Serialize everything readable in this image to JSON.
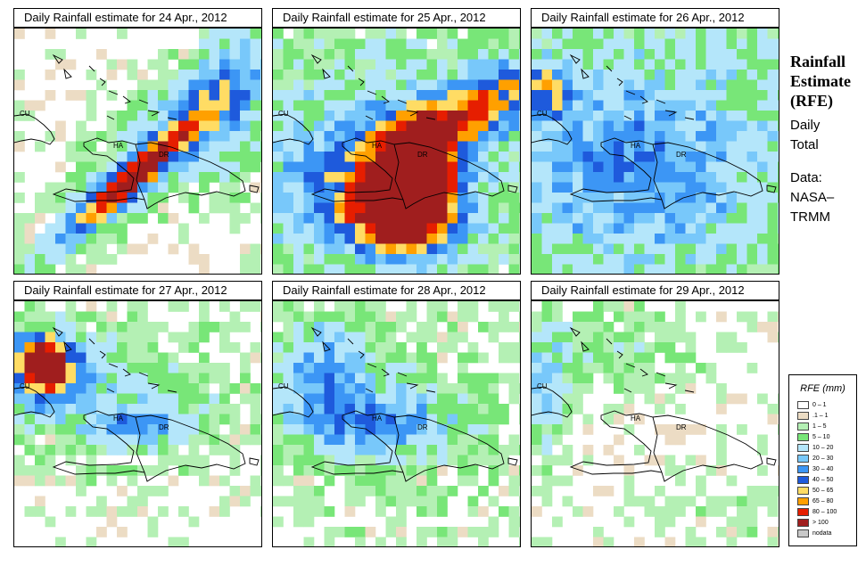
{
  "panels": [
    {
      "title": "Daily Rainfall estimate for  24 Apr., 2012",
      "pattern": "a"
    },
    {
      "title": "Daily Rainfall estimate for  25 Apr., 2012",
      "pattern": "b"
    },
    {
      "title": "Daily Rainfall estimate for  26 Apr., 2012",
      "pattern": "c"
    },
    {
      "title": "Daily Rainfall estimate for  27 Apr., 2012",
      "pattern": "d"
    },
    {
      "title": "Daily Rainfall estimate for  28 Apr., 2012",
      "pattern": "e"
    },
    {
      "title": "Daily Rainfall estimate for  29 Apr., 2012",
      "pattern": "f"
    }
  ],
  "map_labels": {
    "cuba": "CU",
    "haiti": "HA",
    "dominican_republic": "DR"
  },
  "sidebar": {
    "title_line1": "Rainfall",
    "title_line2": "Estimate",
    "title_line3": "(RFE)",
    "desc_line1": "Daily",
    "desc_line2": "Total",
    "source_line1": "Data:",
    "source_line2": "NASA–",
    "source_line3": "TRMM"
  },
  "legend": {
    "title": "RFE (mm)",
    "items": [
      {
        "label": "0 – 1",
        "color": "#ffffff"
      },
      {
        "label": ".1 – 1",
        "color": "#ecdcc4"
      },
      {
        "label": "1 – 5",
        "color": "#b4f0b4"
      },
      {
        "label": "5 – 10",
        "color": "#78e678"
      },
      {
        "label": "10 – 20",
        "color": "#b4e6fa"
      },
      {
        "label": "20 – 30",
        "color": "#78c8fa"
      },
      {
        "label": "30 – 40",
        "color": "#3c96f5"
      },
      {
        "label": "40 – 50",
        "color": "#1e5adc"
      },
      {
        "label": "50 – 65",
        "color": "#ffdc64"
      },
      {
        "label": "65 – 80",
        "color": "#ffa000"
      },
      {
        "label": "80 – 100",
        "color": "#e61e00"
      },
      {
        "label": "> 100",
        "color": "#a01e1e"
      },
      {
        "label": "nodata",
        "color": "#c8c8c8"
      }
    ]
  }
}
